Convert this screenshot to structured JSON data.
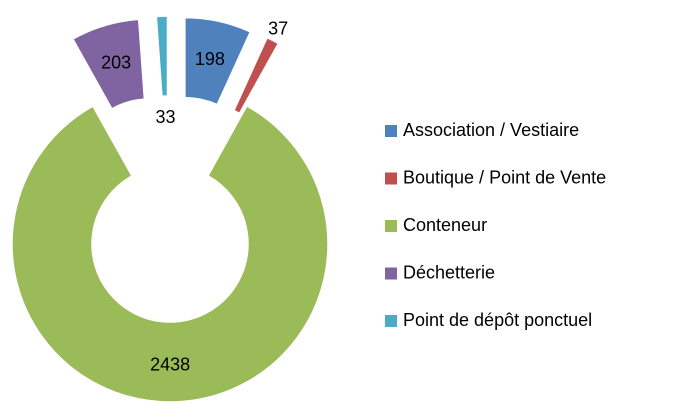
{
  "chart_data": {
    "type": "donut",
    "categories": [
      "Association / Vestiaire",
      "Boutique / Point de Vente",
      "Conteneur",
      "Déchetterie",
      "Point de dépôt ponctuel"
    ],
    "values": [
      198,
      37,
      2438,
      203,
      33
    ],
    "colors": [
      "#4f81bd",
      "#c0504d",
      "#9bbb59",
      "#8064a2",
      "#4bacc6"
    ],
    "legend": "right"
  }
}
